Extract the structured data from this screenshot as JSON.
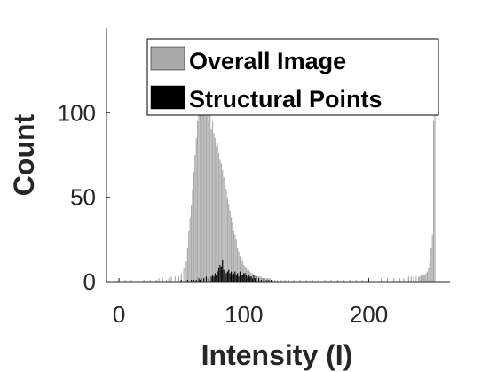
{
  "chart_data": {
    "type": "bar",
    "xlabel": "Intensity (I)",
    "ylabel": "Count",
    "xlim": [
      -10,
      265
    ],
    "ylim": [
      0,
      150
    ],
    "xticks": [
      0,
      100,
      200
    ],
    "yticks": [
      0,
      50,
      100
    ],
    "grid": false,
    "legend_position": "top-right",
    "bin_width": 1,
    "series": [
      {
        "name": "Overall Image",
        "color": "#a9a9a9",
        "x": [
          0,
          5,
          10,
          20,
          25,
          30,
          32,
          35,
          38,
          40,
          42,
          45,
          48,
          50,
          52,
          54,
          55,
          56,
          57,
          58,
          59,
          60,
          61,
          62,
          63,
          64,
          65,
          66,
          67,
          68,
          69,
          70,
          71,
          72,
          73,
          74,
          75,
          76,
          77,
          78,
          79,
          80,
          81,
          82,
          83,
          84,
          85,
          86,
          87,
          88,
          89,
          90,
          91,
          92,
          93,
          94,
          95,
          96,
          97,
          98,
          99,
          100,
          101,
          102,
          103,
          104,
          105,
          106,
          107,
          108,
          109,
          110,
          111,
          112,
          113,
          114,
          115,
          116,
          117,
          118,
          119,
          120,
          121,
          122,
          123,
          125,
          127,
          130,
          133,
          136,
          140,
          145,
          150,
          155,
          160,
          165,
          170,
          175,
          180,
          185,
          190,
          195,
          200,
          205,
          210,
          215,
          220,
          225,
          228,
          230,
          232,
          234,
          236,
          238,
          240,
          241,
          242,
          243,
          244,
          245,
          246,
          247,
          248,
          249,
          250,
          251,
          252,
          253
        ],
        "values": [
          1,
          1,
          1,
          1,
          1,
          1,
          2,
          2,
          1,
          2,
          3,
          3,
          3,
          5,
          8,
          12,
          20,
          30,
          38,
          45,
          55,
          65,
          75,
          85,
          95,
          100,
          104,
          108,
          106,
          100,
          102,
          98,
          104,
          96,
          100,
          90,
          95,
          88,
          85,
          80,
          82,
          76,
          72,
          70,
          66,
          62,
          58,
          55,
          50,
          46,
          42,
          38,
          35,
          30,
          28,
          25,
          20,
          18,
          15,
          14,
          12,
          10,
          9,
          8,
          7,
          7,
          6,
          5,
          5,
          4,
          4,
          4,
          3,
          3,
          3,
          3,
          2,
          2,
          2,
          2,
          2,
          2,
          2,
          1,
          1,
          1,
          1,
          1,
          1,
          1,
          1,
          1,
          1,
          1,
          1,
          1,
          1,
          1,
          1,
          1,
          1,
          1,
          1,
          2,
          2,
          2,
          2,
          2,
          2,
          2,
          3,
          3,
          3,
          3,
          3,
          3,
          4,
          4,
          4,
          4,
          5,
          6,
          8,
          12,
          20,
          28,
          95,
          140
        ]
      },
      {
        "name": "Structural Points",
        "color": "#000000",
        "x": [
          50,
          55,
          58,
          60,
          62,
          64,
          65,
          66,
          68,
          70,
          72,
          74,
          75,
          76,
          77,
          78,
          79,
          80,
          81,
          82,
          83,
          84,
          85,
          86,
          87,
          88,
          89,
          90,
          91,
          92,
          93,
          94,
          95,
          96,
          97,
          98,
          99,
          100,
          101,
          102,
          103,
          104,
          105,
          106,
          107,
          108,
          109,
          110,
          112,
          114,
          116,
          118,
          120,
          122
        ],
        "values": [
          1,
          1,
          1,
          1,
          1,
          2,
          1,
          2,
          2,
          3,
          2,
          3,
          4,
          3,
          5,
          4,
          6,
          8,
          10,
          9,
          13,
          7,
          6,
          5,
          6,
          7,
          5,
          6,
          4,
          5,
          6,
          4,
          5,
          3,
          6,
          4,
          4,
          5,
          5,
          4,
          3,
          4,
          3,
          3,
          2,
          4,
          2,
          3,
          2,
          1,
          2,
          1,
          1,
          1
        ]
      }
    ]
  }
}
